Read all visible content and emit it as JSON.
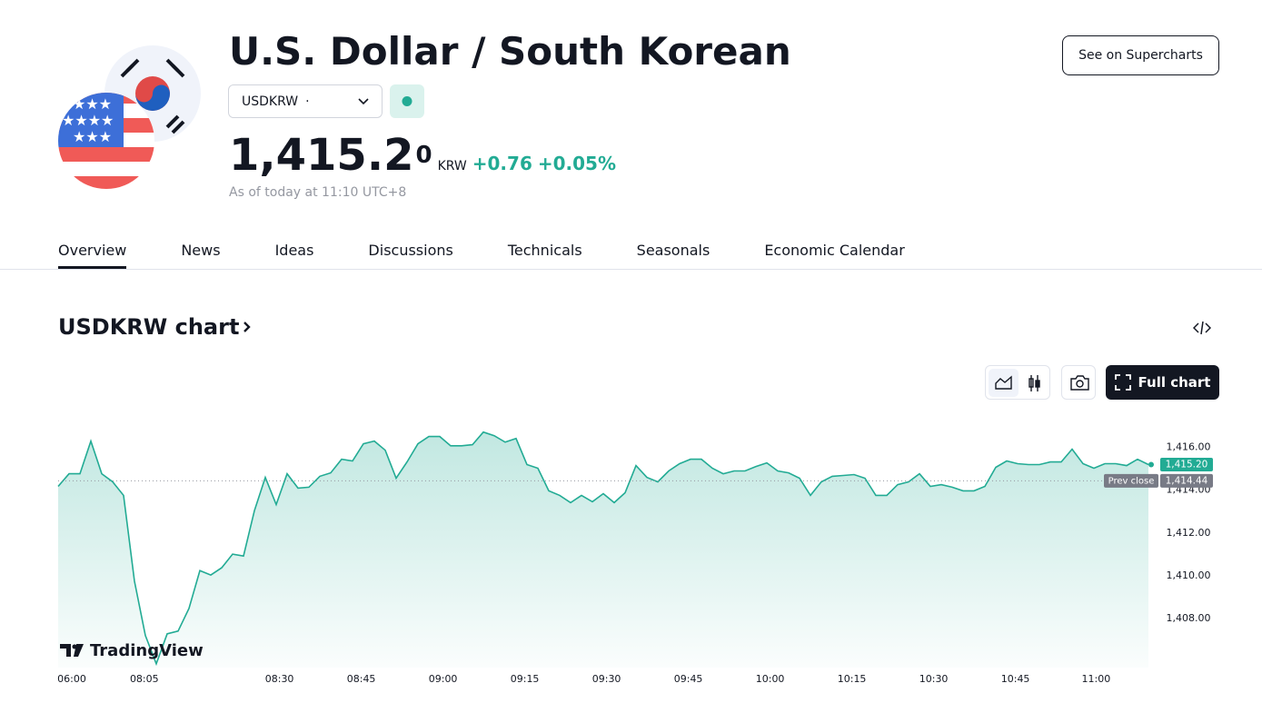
{
  "header": {
    "title": "U.S. Dollar / South Korean",
    "symbol": "USDKRW",
    "symbol_suffix": "·",
    "price": "1,415.2",
    "price_superscript": "0",
    "currency": "KRW",
    "change": "+0.76",
    "change_percent": "+0.05%",
    "timestamp": "As of today at 11:10 UTC+8",
    "button": "See on Supercharts"
  },
  "tabs": [
    "Overview",
    "News",
    "Ideas",
    "Discussions",
    "Technicals",
    "Seasonals",
    "Economic Calendar"
  ],
  "section_title": "USDKRW chart",
  "toolbar": {
    "full_chart": "Full chart"
  },
  "chart_data": {
    "type": "area",
    "color": "#22ab94",
    "grid": false,
    "watermark": "TradingView",
    "values": [
      1414.18,
      1414.77,
      1414.77,
      1416.3,
      1414.77,
      1414.39,
      1413.76,
      1409.74,
      1407.2,
      1405.88,
      1407.28,
      1407.41,
      1408.47,
      1410.24,
      1410.03,
      1410.37,
      1411.01,
      1410.92,
      1413.04,
      1414.6,
      1413.33,
      1414.77,
      1414.1,
      1414.14,
      1414.65,
      1414.81,
      1415.45,
      1415.37,
      1416.17,
      1416.3,
      1415.87,
      1414.56,
      1415.32,
      1416.17,
      1416.51,
      1416.51,
      1416.08,
      1416.08,
      1416.13,
      1416.72,
      1416.55,
      1416.25,
      1416.42,
      1415.2,
      1415.03,
      1413.97,
      1413.76,
      1413.42,
      1413.76,
      1413.46,
      1413.84,
      1413.42,
      1413.88,
      1415.15,
      1414.6,
      1414.39,
      1414.9,
      1415.24,
      1415.45,
      1415.45,
      1415.03,
      1414.77,
      1414.9,
      1414.9,
      1415.11,
      1415.28,
      1414.9,
      1414.81,
      1414.56,
      1413.76,
      1414.39,
      1414.65,
      1414.69,
      1414.73,
      1414.56,
      1413.76,
      1413.76,
      1414.26,
      1414.39,
      1414.77,
      1414.18,
      1414.26,
      1414.14,
      1413.97,
      1413.97,
      1414.18,
      1415.07,
      1415.37,
      1415.24,
      1415.2,
      1415.2,
      1415.32,
      1415.32,
      1415.92,
      1415.24,
      1415.03,
      1415.24,
      1415.24,
      1415.15,
      1415.45,
      1415.2
    ],
    "xlim": [
      0,
      100
    ],
    "xticks": [
      {
        "value": 1.25,
        "label": "06:00"
      },
      {
        "value": 7.9,
        "label": "08:05"
      },
      {
        "value": 20.3,
        "label": "08:30"
      },
      {
        "value": 27.8,
        "label": "08:45"
      },
      {
        "value": 35.3,
        "label": "09:00"
      },
      {
        "value": 42.8,
        "label": "09:15"
      },
      {
        "value": 50.3,
        "label": "09:30"
      },
      {
        "value": 57.8,
        "label": "09:45"
      },
      {
        "value": 65.3,
        "label": "10:00"
      },
      {
        "value": 72.8,
        "label": "10:15"
      },
      {
        "value": 80.3,
        "label": "10:30"
      },
      {
        "value": 87.8,
        "label": "10:45"
      },
      {
        "value": 95.2,
        "label": "11:00"
      }
    ],
    "ylim": [
      1405.7,
      1417.6
    ],
    "yticks": [
      {
        "value": 1408,
        "label": "1,408.00"
      },
      {
        "value": 1410,
        "label": "1,410.00"
      },
      {
        "value": 1412,
        "label": "1,412.00"
      },
      {
        "value": 1414,
        "label": "1,414.00"
      },
      {
        "value": 1416,
        "label": "1,416.00"
      }
    ],
    "last_price": {
      "value": 1415.2,
      "label": "1,415.20"
    },
    "prev_close": {
      "name": "Prev close",
      "value": 1414.44,
      "label": "1,414.44"
    }
  }
}
